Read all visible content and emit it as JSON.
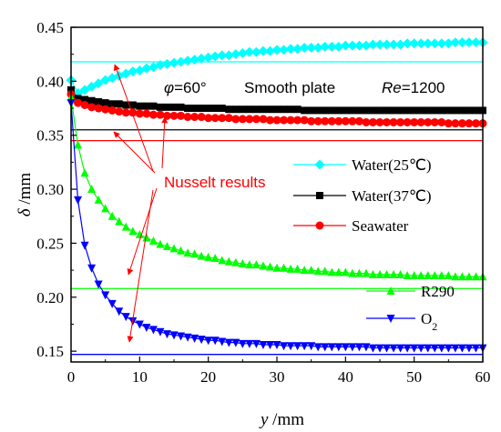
{
  "chart_data": {
    "type": "line",
    "xlabel_var": "y",
    "xlabel_unit": " /mm",
    "ylabel_var": "δ",
    "ylabel_unit": " /mm",
    "xlim": [
      0,
      60
    ],
    "ylim": [
      0.14,
      0.45
    ],
    "x_ticks": [
      "0",
      "10",
      "20",
      "30",
      "40",
      "50",
      "60"
    ],
    "y_ticks": [
      "0.15",
      "0.20",
      "0.25",
      "0.30",
      "0.35",
      "0.40",
      "0.45"
    ],
    "grid": false,
    "legend_position": "right",
    "annotations": {
      "phi_var": "φ",
      "phi_value": "=60°",
      "smooth": "Smooth plate",
      "re_var": "Re",
      "re_value": "=1200",
      "nusselt": "Nusselt results"
    },
    "x": [
      0,
      1,
      2,
      3,
      4,
      5,
      6,
      7,
      8,
      9,
      10,
      11,
      12,
      13,
      14,
      15,
      16,
      17,
      18,
      19,
      20,
      21,
      22,
      23,
      24,
      25,
      26,
      27,
      28,
      29,
      30,
      31,
      32,
      33,
      34,
      35,
      36,
      37,
      38,
      39,
      40,
      41,
      42,
      43,
      44,
      45,
      46,
      47,
      48,
      49,
      50,
      51,
      52,
      53,
      54,
      55,
      56,
      57,
      58,
      59,
      60
    ],
    "series": [
      {
        "name_main": "Water(25℃)",
        "name_sub": "",
        "color": "#00ffff",
        "marker": "diamond",
        "nusselt": 0.418,
        "values": [
          0.401,
          0.389,
          0.392,
          0.395,
          0.398,
          0.401,
          0.403,
          0.405,
          0.407,
          0.409,
          0.41,
          0.412,
          0.413,
          0.415,
          0.416,
          0.417,
          0.418,
          0.419,
          0.42,
          0.421,
          0.422,
          0.423,
          0.424,
          0.424,
          0.425,
          0.426,
          0.427,
          0.427,
          0.428,
          0.428,
          0.429,
          0.429,
          0.43,
          0.43,
          0.431,
          0.431,
          0.431,
          0.432,
          0.432,
          0.432,
          0.433,
          0.433,
          0.433,
          0.433,
          0.434,
          0.434,
          0.434,
          0.434,
          0.434,
          0.435,
          0.435,
          0.435,
          0.435,
          0.435,
          0.435,
          0.435,
          0.436,
          0.436,
          0.436,
          0.436,
          0.436
        ]
      },
      {
        "name_main": "Water(37℃)",
        "name_sub": "",
        "color": "#000000",
        "marker": "square",
        "nusselt": 0.355,
        "values": [
          0.392,
          0.384,
          0.383,
          0.382,
          0.381,
          0.38,
          0.379,
          0.379,
          0.378,
          0.378,
          0.377,
          0.377,
          0.377,
          0.376,
          0.376,
          0.376,
          0.376,
          0.375,
          0.375,
          0.375,
          0.375,
          0.375,
          0.375,
          0.374,
          0.374,
          0.374,
          0.374,
          0.374,
          0.374,
          0.374,
          0.374,
          0.374,
          0.374,
          0.374,
          0.373,
          0.373,
          0.373,
          0.373,
          0.373,
          0.373,
          0.373,
          0.373,
          0.373,
          0.373,
          0.373,
          0.373,
          0.373,
          0.373,
          0.373,
          0.373,
          0.373,
          0.373,
          0.373,
          0.373,
          0.373,
          0.373,
          0.373,
          0.373,
          0.373,
          0.373,
          0.373
        ]
      },
      {
        "name_main": "Seawater",
        "name_sub": "",
        "color": "#ff0000",
        "marker": "circle",
        "nusselt": 0.345,
        "values": [
          0.388,
          0.38,
          0.378,
          0.376,
          0.375,
          0.374,
          0.373,
          0.372,
          0.371,
          0.371,
          0.37,
          0.37,
          0.369,
          0.369,
          0.368,
          0.368,
          0.368,
          0.367,
          0.367,
          0.367,
          0.366,
          0.366,
          0.366,
          0.366,
          0.365,
          0.365,
          0.365,
          0.365,
          0.365,
          0.364,
          0.364,
          0.364,
          0.364,
          0.364,
          0.364,
          0.363,
          0.363,
          0.363,
          0.363,
          0.363,
          0.363,
          0.363,
          0.363,
          0.362,
          0.362,
          0.362,
          0.362,
          0.362,
          0.362,
          0.362,
          0.362,
          0.362,
          0.362,
          0.362,
          0.362,
          0.361,
          0.361,
          0.361,
          0.361,
          0.361,
          0.361
        ]
      },
      {
        "name_main": "R290",
        "name_sub": "",
        "color": "#00ff00",
        "marker": "triangle-up",
        "nusselt": 0.208,
        "values": [
          0.385,
          0.341,
          0.315,
          0.3,
          0.29,
          0.282,
          0.275,
          0.27,
          0.265,
          0.261,
          0.258,
          0.255,
          0.252,
          0.249,
          0.247,
          0.245,
          0.243,
          0.241,
          0.24,
          0.238,
          0.237,
          0.236,
          0.234,
          0.233,
          0.232,
          0.231,
          0.23,
          0.23,
          0.229,
          0.228,
          0.227,
          0.227,
          0.226,
          0.226,
          0.225,
          0.225,
          0.224,
          0.224,
          0.223,
          0.223,
          0.223,
          0.222,
          0.222,
          0.222,
          0.221,
          0.221,
          0.221,
          0.221,
          0.221,
          0.22,
          0.22,
          0.22,
          0.22,
          0.22,
          0.22,
          0.22,
          0.219,
          0.219,
          0.219,
          0.219,
          0.219
        ]
      },
      {
        "name_main": "O",
        "name_sub": "2",
        "color": "#0000ff",
        "marker": "triangle-down",
        "nusselt": 0.147,
        "values": [
          0.38,
          0.29,
          0.248,
          0.227,
          0.212,
          0.202,
          0.194,
          0.187,
          0.182,
          0.178,
          0.175,
          0.172,
          0.17,
          0.168,
          0.166,
          0.165,
          0.164,
          0.163,
          0.162,
          0.161,
          0.16,
          0.16,
          0.159,
          0.158,
          0.158,
          0.157,
          0.157,
          0.157,
          0.156,
          0.156,
          0.156,
          0.155,
          0.155,
          0.155,
          0.155,
          0.155,
          0.154,
          0.154,
          0.154,
          0.154,
          0.154,
          0.154,
          0.154,
          0.154,
          0.153,
          0.153,
          0.153,
          0.153,
          0.153,
          0.153,
          0.153,
          0.153,
          0.153,
          0.153,
          0.153,
          0.153,
          0.153,
          0.153,
          0.153,
          0.153,
          0.153
        ]
      }
    ]
  }
}
